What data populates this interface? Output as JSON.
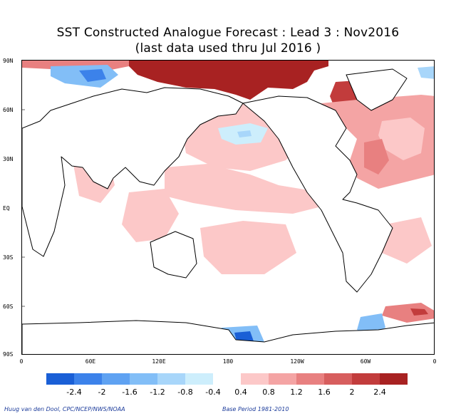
{
  "title_line1": "SST Constructed Analogue Forecast : Lead 3 : Nov2016",
  "title_line2": "(last data used thru Jul 2016 )",
  "lat_labels": [
    "90N",
    "60N",
    "30N",
    "EQ",
    "30S",
    "60S",
    "90S"
  ],
  "lon_labels": [
    "0",
    "60E",
    "120E",
    "180",
    "120W",
    "60W",
    "0"
  ],
  "colorbar": {
    "colors": [
      "#1a5fd6",
      "#3c82ea",
      "#5fa2f2",
      "#82bef7",
      "#a8d6fa",
      "#cdeefc",
      "#ffffff",
      "#fcc8c8",
      "#f4a4a4",
      "#e88080",
      "#d75e5e",
      "#c23c3c",
      "#a82222"
    ],
    "labels": [
      "-2.4",
      "-2",
      "-1.6",
      "-1.2",
      "-0.8",
      "-0.4",
      "0.4",
      "0.8",
      "1.2",
      "1.6",
      "2",
      "2.4"
    ]
  },
  "credit_left": "Huug van den Dool, CPC/NCEP/NWS/NOAA",
  "credit_right": "Base Period 1981-2010"
}
